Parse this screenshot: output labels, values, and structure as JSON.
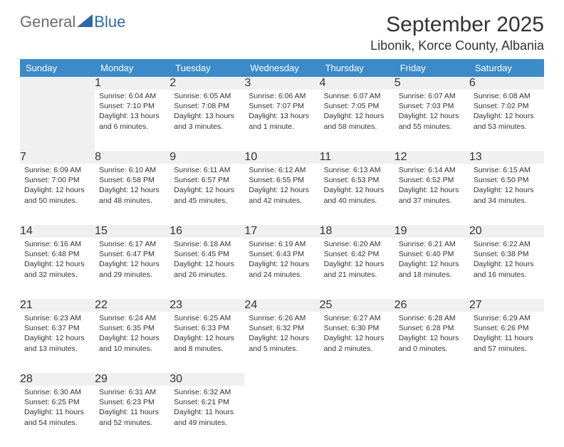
{
  "brand": {
    "part1": "General",
    "part2": "Blue",
    "triangle_color": "#2b6aa8"
  },
  "title": "September 2025",
  "location": "Libonik, Korce County, Albania",
  "colors": {
    "header_bg": "#3b8bc9",
    "header_text": "#ffffff",
    "divider": "#3b6a94",
    "numrow_bg": "#f0f0f0",
    "text": "#333333"
  },
  "weekday_labels": [
    "Sunday",
    "Monday",
    "Tuesday",
    "Wednesday",
    "Thursday",
    "Friday",
    "Saturday"
  ],
  "weeks": [
    [
      {
        "blank": true
      },
      {
        "num": "1",
        "sunrise": "Sunrise: 6:04 AM",
        "sunset": "Sunset: 7:10 PM",
        "day1": "Daylight: 13 hours",
        "day2": "and 6 minutes."
      },
      {
        "num": "2",
        "sunrise": "Sunrise: 6:05 AM",
        "sunset": "Sunset: 7:08 PM",
        "day1": "Daylight: 13 hours",
        "day2": "and 3 minutes."
      },
      {
        "num": "3",
        "sunrise": "Sunrise: 6:06 AM",
        "sunset": "Sunset: 7:07 PM",
        "day1": "Daylight: 13 hours",
        "day2": "and 1 minute."
      },
      {
        "num": "4",
        "sunrise": "Sunrise: 6:07 AM",
        "sunset": "Sunset: 7:05 PM",
        "day1": "Daylight: 12 hours",
        "day2": "and 58 minutes."
      },
      {
        "num": "5",
        "sunrise": "Sunrise: 6:07 AM",
        "sunset": "Sunset: 7:03 PM",
        "day1": "Daylight: 12 hours",
        "day2": "and 55 minutes."
      },
      {
        "num": "6",
        "sunrise": "Sunrise: 6:08 AM",
        "sunset": "Sunset: 7:02 PM",
        "day1": "Daylight: 12 hours",
        "day2": "and 53 minutes."
      }
    ],
    [
      {
        "num": "7",
        "sunrise": "Sunrise: 6:09 AM",
        "sunset": "Sunset: 7:00 PM",
        "day1": "Daylight: 12 hours",
        "day2": "and 50 minutes."
      },
      {
        "num": "8",
        "sunrise": "Sunrise: 6:10 AM",
        "sunset": "Sunset: 6:58 PM",
        "day1": "Daylight: 12 hours",
        "day2": "and 48 minutes."
      },
      {
        "num": "9",
        "sunrise": "Sunrise: 6:11 AM",
        "sunset": "Sunset: 6:57 PM",
        "day1": "Daylight: 12 hours",
        "day2": "and 45 minutes."
      },
      {
        "num": "10",
        "sunrise": "Sunrise: 6:12 AM",
        "sunset": "Sunset: 6:55 PM",
        "day1": "Daylight: 12 hours",
        "day2": "and 42 minutes."
      },
      {
        "num": "11",
        "sunrise": "Sunrise: 6:13 AM",
        "sunset": "Sunset: 6:53 PM",
        "day1": "Daylight: 12 hours",
        "day2": "and 40 minutes."
      },
      {
        "num": "12",
        "sunrise": "Sunrise: 6:14 AM",
        "sunset": "Sunset: 6:52 PM",
        "day1": "Daylight: 12 hours",
        "day2": "and 37 minutes."
      },
      {
        "num": "13",
        "sunrise": "Sunrise: 6:15 AM",
        "sunset": "Sunset: 6:50 PM",
        "day1": "Daylight: 12 hours",
        "day2": "and 34 minutes."
      }
    ],
    [
      {
        "num": "14",
        "sunrise": "Sunrise: 6:16 AM",
        "sunset": "Sunset: 6:48 PM",
        "day1": "Daylight: 12 hours",
        "day2": "and 32 minutes."
      },
      {
        "num": "15",
        "sunrise": "Sunrise: 6:17 AM",
        "sunset": "Sunset: 6:47 PM",
        "day1": "Daylight: 12 hours",
        "day2": "and 29 minutes."
      },
      {
        "num": "16",
        "sunrise": "Sunrise: 6:18 AM",
        "sunset": "Sunset: 6:45 PM",
        "day1": "Daylight: 12 hours",
        "day2": "and 26 minutes."
      },
      {
        "num": "17",
        "sunrise": "Sunrise: 6:19 AM",
        "sunset": "Sunset: 6:43 PM",
        "day1": "Daylight: 12 hours",
        "day2": "and 24 minutes."
      },
      {
        "num": "18",
        "sunrise": "Sunrise: 6:20 AM",
        "sunset": "Sunset: 6:42 PM",
        "day1": "Daylight: 12 hours",
        "day2": "and 21 minutes."
      },
      {
        "num": "19",
        "sunrise": "Sunrise: 6:21 AM",
        "sunset": "Sunset: 6:40 PM",
        "day1": "Daylight: 12 hours",
        "day2": "and 18 minutes."
      },
      {
        "num": "20",
        "sunrise": "Sunrise: 6:22 AM",
        "sunset": "Sunset: 6:38 PM",
        "day1": "Daylight: 12 hours",
        "day2": "and 16 minutes."
      }
    ],
    [
      {
        "num": "21",
        "sunrise": "Sunrise: 6:23 AM",
        "sunset": "Sunset: 6:37 PM",
        "day1": "Daylight: 12 hours",
        "day2": "and 13 minutes."
      },
      {
        "num": "22",
        "sunrise": "Sunrise: 6:24 AM",
        "sunset": "Sunset: 6:35 PM",
        "day1": "Daylight: 12 hours",
        "day2": "and 10 minutes."
      },
      {
        "num": "23",
        "sunrise": "Sunrise: 6:25 AM",
        "sunset": "Sunset: 6:33 PM",
        "day1": "Daylight: 12 hours",
        "day2": "and 8 minutes."
      },
      {
        "num": "24",
        "sunrise": "Sunrise: 6:26 AM",
        "sunset": "Sunset: 6:32 PM",
        "day1": "Daylight: 12 hours",
        "day2": "and 5 minutes."
      },
      {
        "num": "25",
        "sunrise": "Sunrise: 6:27 AM",
        "sunset": "Sunset: 6:30 PM",
        "day1": "Daylight: 12 hours",
        "day2": "and 2 minutes."
      },
      {
        "num": "26",
        "sunrise": "Sunrise: 6:28 AM",
        "sunset": "Sunset: 6:28 PM",
        "day1": "Daylight: 12 hours",
        "day2": "and 0 minutes."
      },
      {
        "num": "27",
        "sunrise": "Sunrise: 6:29 AM",
        "sunset": "Sunset: 6:26 PM",
        "day1": "Daylight: 11 hours",
        "day2": "and 57 minutes."
      }
    ],
    [
      {
        "num": "28",
        "sunrise": "Sunrise: 6:30 AM",
        "sunset": "Sunset: 6:25 PM",
        "day1": "Daylight: 11 hours",
        "day2": "and 54 minutes."
      },
      {
        "num": "29",
        "sunrise": "Sunrise: 6:31 AM",
        "sunset": "Sunset: 6:23 PM",
        "day1": "Daylight: 11 hours",
        "day2": "and 52 minutes."
      },
      {
        "num": "30",
        "sunrise": "Sunrise: 6:32 AM",
        "sunset": "Sunset: 6:21 PM",
        "day1": "Daylight: 11 hours",
        "day2": "and 49 minutes."
      },
      {
        "blank": true
      },
      {
        "blank": true
      },
      {
        "blank": true
      },
      {
        "blank": true
      }
    ]
  ]
}
